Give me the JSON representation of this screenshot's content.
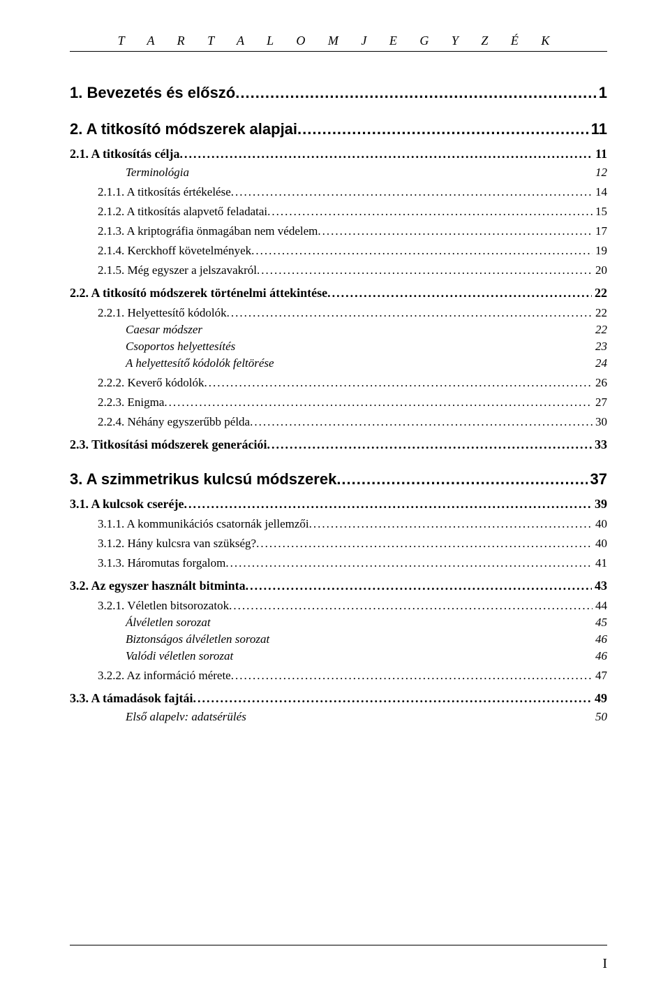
{
  "header": {
    "title": "T A R T A L O M J E G Y Z É K"
  },
  "page_number": "I",
  "entries": [
    {
      "level": 1,
      "label": "1. Bevezetés és előszó",
      "page": "1",
      "dots": true
    },
    {
      "level": 1,
      "label": "2. A titkosító módszerek alapjai",
      "page": "11",
      "dots": true
    },
    {
      "level": 2,
      "label": "2.1. A titkosítás célja",
      "page": "11",
      "dots": true
    },
    {
      "level": 4,
      "label": "Terminológia",
      "page": "12",
      "dots": false
    },
    {
      "level": 3,
      "label": "2.1.1. A titkosítás értékelése",
      "page": "14",
      "dots": true
    },
    {
      "level": 3,
      "label": "2.1.2. A titkosítás alapvető feladatai",
      "page": "15",
      "dots": true
    },
    {
      "level": 3,
      "label": "2.1.3. A kriptográfia önmagában nem védelem",
      "page": "17",
      "dots": true
    },
    {
      "level": 3,
      "label": "2.1.4. Kerckhoff követelmények",
      "page": "19",
      "dots": true
    },
    {
      "level": 3,
      "label": "2.1.5. Még egyszer a jelszavakról",
      "page": "20",
      "dots": true
    },
    {
      "level": 2,
      "label": "2.2. A titkosító módszerek történelmi áttekintése",
      "page": "22",
      "dots": true
    },
    {
      "level": 3,
      "label": "2.2.1. Helyettesítő kódolók",
      "page": "22",
      "dots": true
    },
    {
      "level": 4,
      "label": "Caesar módszer",
      "page": "22",
      "dots": false
    },
    {
      "level": 4,
      "label": "Csoportos helyettesítés",
      "page": "23",
      "dots": false
    },
    {
      "level": 4,
      "label": "A helyettesítő kódolók feltörése",
      "page": "24",
      "dots": false
    },
    {
      "level": 3,
      "label": "2.2.2. Keverő kódolók",
      "page": "26",
      "dots": true
    },
    {
      "level": 3,
      "label": "2.2.3. Enigma",
      "page": "27",
      "dots": true
    },
    {
      "level": 3,
      "label": "2.2.4. Néhány egyszerűbb példa",
      "page": "30",
      "dots": true
    },
    {
      "level": 2,
      "label": "2.3. Titkosítási módszerek generációi",
      "page": "33",
      "dots": true
    },
    {
      "level": 1,
      "label": "3. A szimmetrikus kulcsú módszerek",
      "page": "37",
      "dots": true
    },
    {
      "level": 2,
      "label": "3.1. A kulcsok cseréje",
      "page": "39",
      "dots": true
    },
    {
      "level": 3,
      "label": "3.1.1. A kommunikációs csatornák jellemzői",
      "page": "40",
      "dots": true
    },
    {
      "level": 3,
      "label": "3.1.2. Hány kulcsra van szükség?",
      "page": "40",
      "dots": true
    },
    {
      "level": 3,
      "label": "3.1.3. Háromutas forgalom",
      "page": "41",
      "dots": true
    },
    {
      "level": 2,
      "label": "3.2. Az egyszer használt bitminta",
      "page": "43",
      "dots": true
    },
    {
      "level": 3,
      "label": "3.2.1. Véletlen bitsorozatok",
      "page": "44",
      "dots": true
    },
    {
      "level": 4,
      "label": "Álvéletlen sorozat",
      "page": "45",
      "dots": false
    },
    {
      "level": 4,
      "label": "Biztonságos álvéletlen sorozat",
      "page": "46",
      "dots": false
    },
    {
      "level": 4,
      "label": "Valódi véletlen sorozat",
      "page": "46",
      "dots": false
    },
    {
      "level": 3,
      "label": "3.2.2. Az információ mérete",
      "page": "47",
      "dots": true
    },
    {
      "level": 2,
      "label": "3.3. A támadások fajtái",
      "page": "49",
      "dots": true
    },
    {
      "level": 4,
      "label": "Első alapelv: adatsérülés",
      "page": "50",
      "dots": false
    }
  ]
}
